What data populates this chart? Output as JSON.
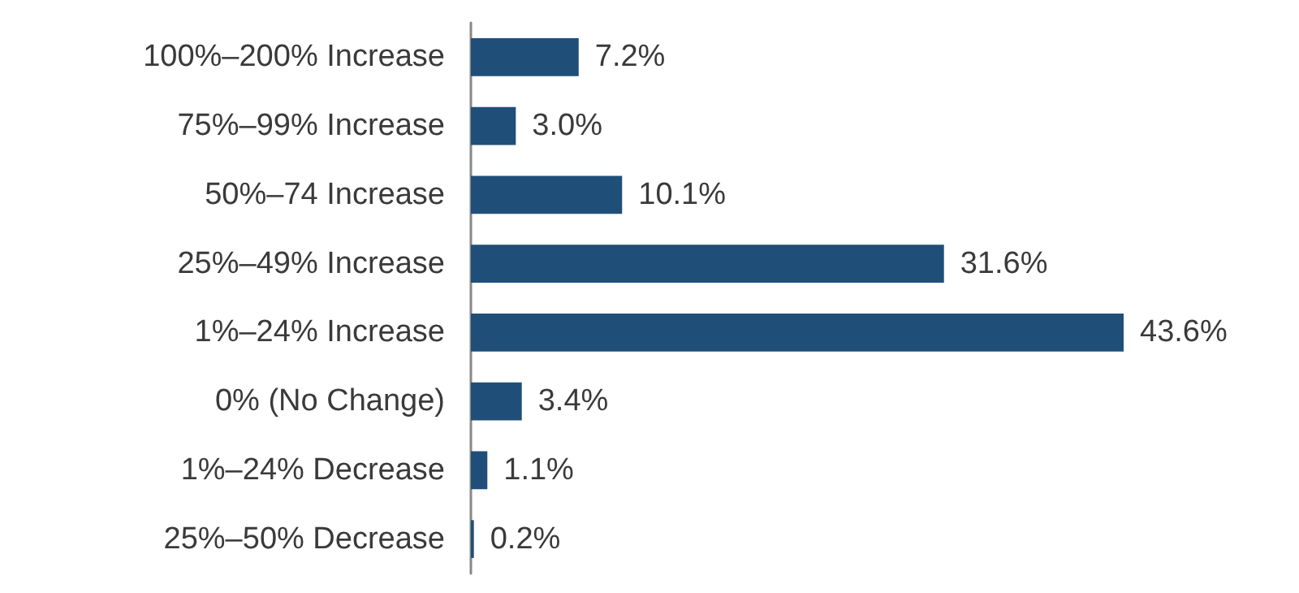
{
  "chart_data": {
    "type": "bar",
    "orientation": "horizontal",
    "categories": [
      "100%–200% Increase",
      "75%–99% Increase",
      "50%–74 Increase",
      "25%–49% Increase",
      "1%–24% Increase",
      "0% (No Change)",
      "1%–24% Decrease",
      "25%–50% Decrease"
    ],
    "values": [
      7.2,
      3.0,
      10.1,
      31.6,
      43.6,
      3.4,
      1.1,
      0.2
    ],
    "value_labels": [
      "7.2%",
      "3.0%",
      "10.1%",
      "31.6%",
      "43.6%",
      "3.4%",
      "1.1%",
      "0.2%"
    ],
    "color": "#1f4f78"
  }
}
